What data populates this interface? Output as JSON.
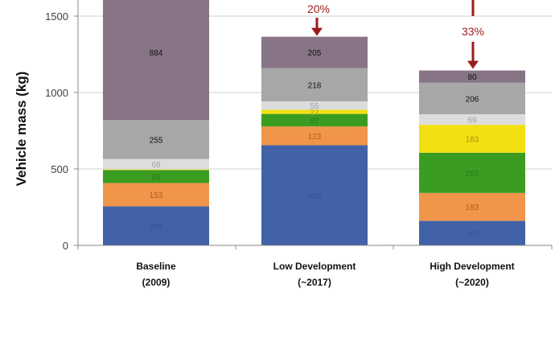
{
  "chart_data": {
    "type": "bar",
    "stacked": true,
    "title": "",
    "xlabel": "",
    "ylabel": "Vehicle mass (kg)",
    "ylim": [
      0,
      1600
    ],
    "yticks": [
      0,
      500,
      1000,
      1500
    ],
    "grid": true,
    "categories": [
      [
        "Baseline",
        "(2009)"
      ],
      [
        "Low Development",
        "(~2017)"
      ],
      [
        "High Development",
        "(~2020)"
      ]
    ],
    "series": [
      {
        "color": "#4262a8",
        "label_color": "#34528f",
        "values": [
          255,
          655,
          160
        ],
        "labels": [
          "255",
          "655",
          "160"
        ]
      },
      {
        "color": "#f0954a",
        "label_color": "#b85a22",
        "values": [
          153,
          123,
          183
        ],
        "labels": [
          "153",
          "123",
          "183"
        ]
      },
      {
        "color": "#3b9c22",
        "label_color": "#2a7a18",
        "values": [
          85,
          82,
          263
        ],
        "labels": [
          "85",
          "82",
          "263"
        ]
      },
      {
        "color": "#f2e012",
        "label_color": "#a89a10",
        "values": [
          4,
          27,
          183
        ],
        "labels": [
          "",
          "27",
          "183"
        ]
      },
      {
        "color": "#dddddd",
        "label_color": "#a0a0a0",
        "values": [
          68,
          55,
          69
        ],
        "labels": [
          "68",
          "55",
          "69"
        ]
      },
      {
        "color": "#a7a7a7",
        "label_color": "#111111",
        "values": [
          255,
          218,
          206
        ],
        "labels": [
          "255",
          "218",
          "206"
        ]
      },
      {
        "color": "#877486",
        "label_color": "#111111",
        "values": [
          884,
          205,
          80
        ],
        "labels": [
          "884",
          "205",
          "80"
        ]
      }
    ],
    "annotations": [
      {
        "text": "20%",
        "category": 1
      },
      {
        "text": "33%",
        "category": 2
      }
    ],
    "annotation_color": "#9b1c1c"
  }
}
